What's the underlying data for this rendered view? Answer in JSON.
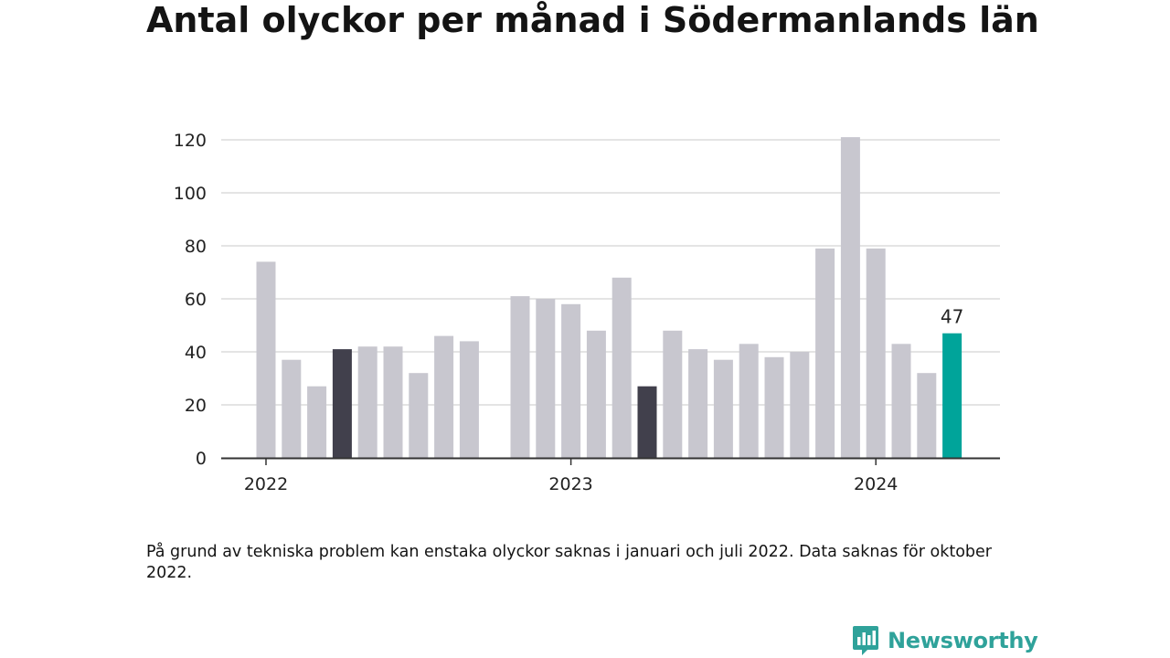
{
  "title": "Antal olyckor per månad i Södermanlands län",
  "note": "På grund av tekniska problem kan enstaka olyckor saknas i januari och juli 2022. Data saknas för oktober 2022.",
  "brand": {
    "name": "Newsworthy",
    "icon": "newsworthy-logo-icon"
  },
  "colors": {
    "default_bar": "#c8c7cf",
    "highlight_bar": "#41404c",
    "latest_bar": "#00a49a",
    "grid": "#dcdcdc",
    "axis": "#333333",
    "brand": "#2fa29a"
  },
  "chart_data": {
    "type": "bar",
    "title": "Antal olyckor per månad i Södermanlands län",
    "xlabel": "",
    "ylabel": "",
    "ylim": [
      0,
      120
    ],
    "yticks": [
      0,
      20,
      40,
      60,
      80,
      100,
      120
    ],
    "grid": true,
    "x_tick_labels": [
      "2022",
      "2023",
      "2024"
    ],
    "categories": [
      "2022-01",
      "2022-02",
      "2022-03",
      "2022-04",
      "2022-05",
      "2022-06",
      "2022-07",
      "2022-08",
      "2022-09",
      "2022-10",
      "2022-11",
      "2022-12",
      "2023-01",
      "2023-02",
      "2023-03",
      "2023-04",
      "2023-05",
      "2023-06",
      "2023-07",
      "2023-08",
      "2023-09",
      "2023-10",
      "2023-11",
      "2023-12",
      "2024-01",
      "2024-02",
      "2024-03",
      "2024-04",
      "2024-05"
    ],
    "values": [
      74,
      37,
      27,
      41,
      42,
      42,
      32,
      46,
      44,
      null,
      61,
      60,
      58,
      48,
      68,
      27,
      48,
      41,
      37,
      43,
      38,
      40,
      79,
      121,
      79,
      43,
      32,
      47,
      null
    ],
    "highlight": [
      "2022-04",
      "2023-04"
    ],
    "latest": "2024-04",
    "value_labels": [
      {
        "category": "2024-04",
        "text": "47"
      }
    ]
  }
}
